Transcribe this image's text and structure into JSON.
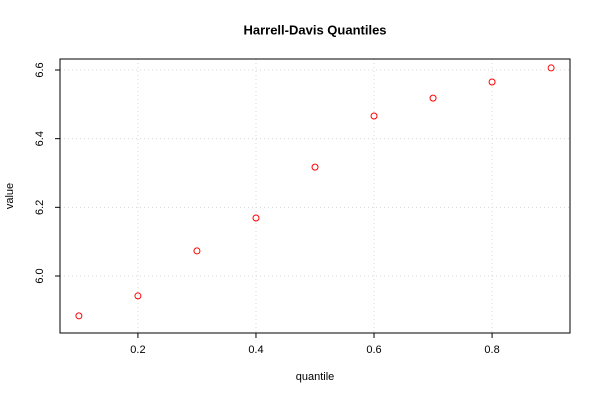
{
  "chart_data": {
    "type": "scatter",
    "title": "Harrell-Davis Quantiles",
    "x_label": "quantile",
    "y_label": "value",
    "x": [
      0.1,
      0.2,
      0.3,
      0.4,
      0.5,
      0.6,
      0.7,
      0.8,
      0.9
    ],
    "values": [
      5.884,
      5.942,
      6.073,
      6.169,
      6.317,
      6.466,
      6.518,
      6.565,
      6.606
    ],
    "color": "#ff0000",
    "xlim": [
      0.068,
      0.932
    ],
    "xticks": [
      0.2,
      0.4,
      0.6,
      0.8
    ],
    "ylim": [
      5.834,
      6.632
    ],
    "yticks": [
      {
        "value": 6,
        "label": "6.0"
      },
      6.2,
      6.4,
      6.6
    ],
    "grid": true
  }
}
